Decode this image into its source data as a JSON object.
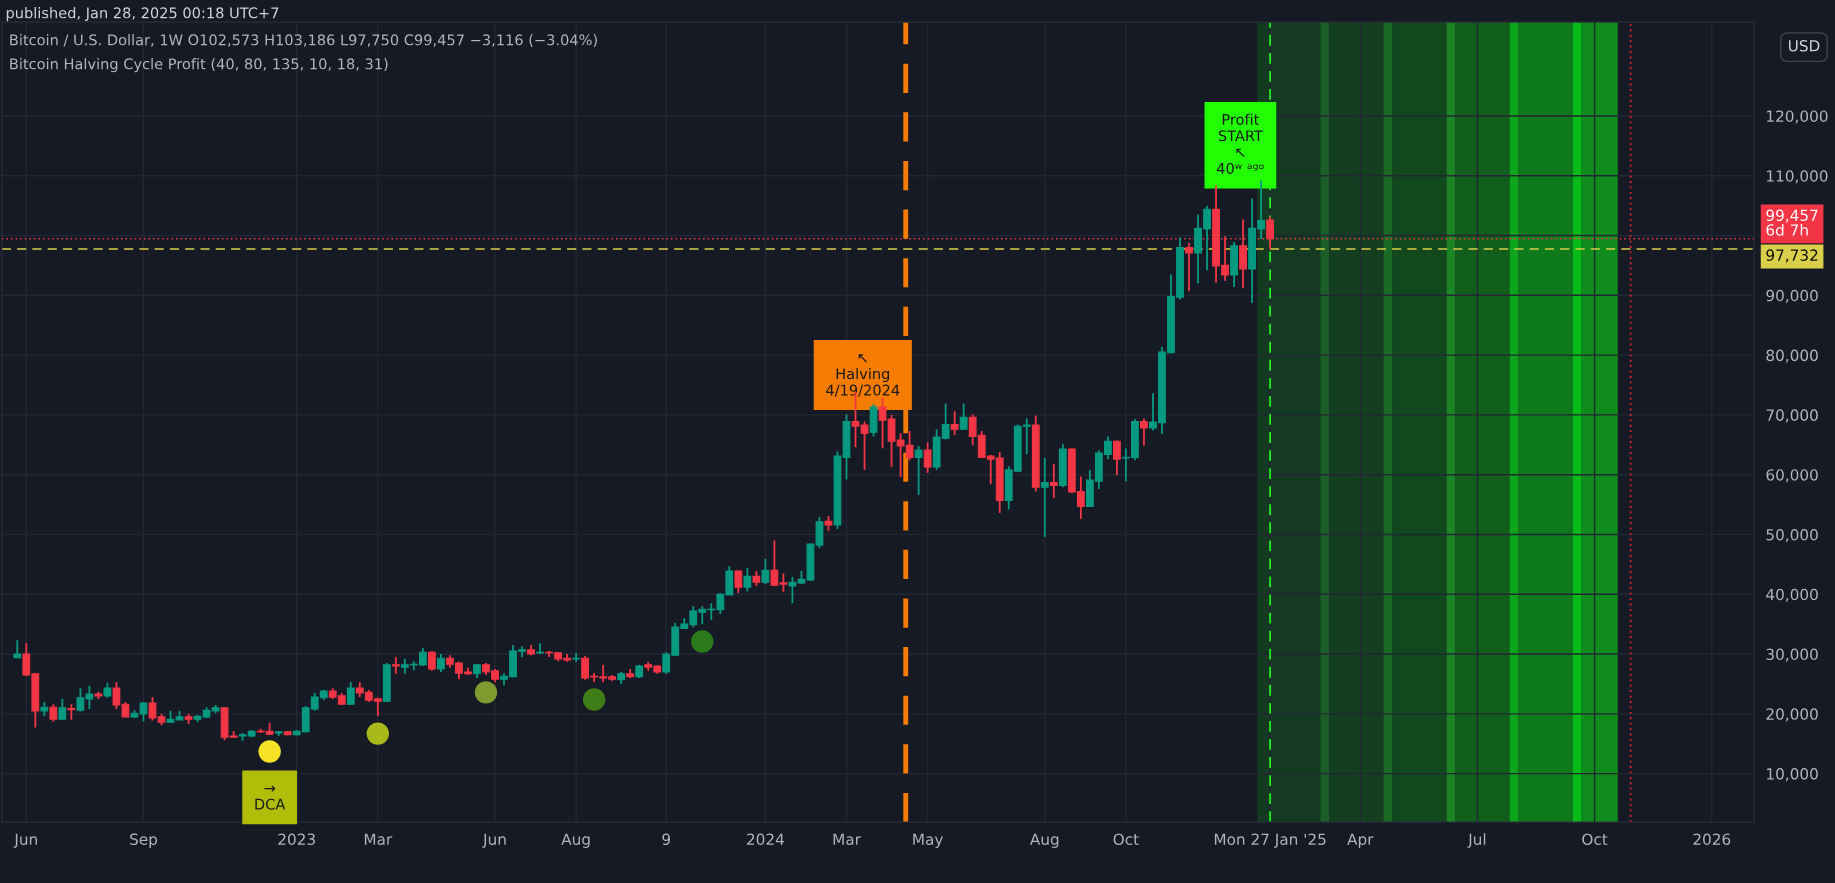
{
  "chart_data": {
    "type": "candlestick",
    "title": "Bitcoin / U.S. Dollar, 1W O102,573 H103,186 L97,750 C99,457 −3,116 (−3.04%)",
    "subtitle": "Bitcoin Halving Cycle Profit (40, 80, 135, 10, 18, 31)",
    "colors": [
      "#089981",
      "#f23645",
      "#f23645",
      "#089981",
      "#f23645",
      "#089981",
      "#f23645",
      "#089981",
      "#089981",
      "#f23645",
      "#089981",
      "#f23645",
      "#f23645",
      "#089981",
      "#089981",
      "#f23645",
      "#f23645",
      "#089981",
      "#089981",
      "#f23645",
      "#089981",
      "#089981",
      "#089981",
      "#f23645",
      "#f23645",
      "#089981",
      "#089981",
      "#f23645",
      "#f23645",
      "#089981",
      "#f23645",
      "#089981",
      "#089981",
      "#089981",
      "#089981",
      "#f23645",
      "#f23645",
      "#089981",
      "#f23645",
      "#f23645",
      "#f23645",
      "#089981",
      "#f23645",
      "#089981",
      "#089981",
      "#089981",
      "#f23645",
      "#089981",
      "#f23645",
      "#f23645",
      "#f23645",
      "#089981",
      "#f23645",
      "#f23645",
      "#089981",
      "#089981",
      "#089981",
      "#f23645",
      "#089981",
      "#f23645",
      "#f23645",
      "#f23645",
      "#089981",
      "#f23645",
      "#f23645",
      "#f23645",
      "#f23645",
      "#089981",
      "#f23645",
      "#089981",
      "#f23645",
      "#f23645",
      "#089981",
      "#089981",
      "#089981",
      "#089981",
      "#089981",
      "#089981",
      "#089981",
      "#089981",
      "#f23645",
      "#089981",
      "#f23645",
      "#089981",
      "#f23645",
      "#f23645",
      "#089981",
      "#089981",
      "#089981",
      "#089981",
      "#f23645",
      "#089981",
      "#089981",
      "#f23645",
      "#f23645",
      "#089981",
      "#f23645",
      "#f23645",
      "#f23645",
      "#f23645",
      "#089981",
      "#f23645",
      "#089981",
      "#089981",
      "#f23645",
      "#089981",
      "#f23645",
      "#f23645",
      "#f23645",
      "#f23645",
      "#089981",
      "#089981",
      "#089981",
      "#f23645",
      "#089981",
      "#f23645",
      "#089981",
      "#f23645",
      "#f23645",
      "#089981",
      "#089981",
      "#089981",
      "#f23645",
      "#089981",
      "#089981",
      "#f23645",
      "#089981",
      "#089981",
      "#089981",
      "#089981",
      "#f23645",
      "#089981",
      "#089981",
      "#f23645",
      "#f23645",
      "#089981",
      "#f23645",
      "#089981",
      "#089981",
      "#f23645"
    ],
    "x": [
      "2022-05-30",
      "2022-06-06",
      "2022-06-13",
      "2022-06-20",
      "2022-06-27",
      "2022-07-04",
      "2022-07-11",
      "2022-07-18",
      "2022-07-25",
      "2022-08-01",
      "2022-08-08",
      "2022-08-15",
      "2022-08-22",
      "2022-08-29",
      "2022-09-05",
      "2022-09-12",
      "2022-09-19",
      "2022-09-26",
      "2022-10-03",
      "2022-10-10",
      "2022-10-17",
      "2022-10-24",
      "2022-10-31",
      "2022-11-07",
      "2022-11-14",
      "2022-11-21",
      "2022-11-28",
      "2022-12-05",
      "2022-12-12",
      "2022-12-19",
      "2022-12-26",
      "2023-01-02",
      "2023-01-09",
      "2023-01-16",
      "2023-01-23",
      "2023-01-30",
      "2023-02-06",
      "2023-02-13",
      "2023-02-20",
      "2023-02-27",
      "2023-03-06",
      "2023-03-13",
      "2023-03-20",
      "2023-03-27",
      "2023-04-03",
      "2023-04-10",
      "2023-04-17",
      "2023-04-24",
      "2023-05-01",
      "2023-05-08",
      "2023-05-15",
      "2023-05-22",
      "2023-05-29",
      "2023-06-05",
      "2023-06-12",
      "2023-06-19",
      "2023-06-26",
      "2023-07-03",
      "2023-07-10",
      "2023-07-17",
      "2023-07-24",
      "2023-07-31",
      "2023-08-07",
      "2023-08-14",
      "2023-08-21",
      "2023-08-28",
      "2023-09-04",
      "2023-09-11",
      "2023-09-18",
      "2023-09-25",
      "2023-10-02",
      "2023-10-09",
      "2023-10-16",
      "2023-10-23",
      "2023-10-30",
      "2023-11-06",
      "2023-11-13",
      "2023-11-20",
      "2023-11-27",
      "2023-12-04",
      "2023-12-11",
      "2023-12-18",
      "2023-12-25",
      "2024-01-01",
      "2024-01-08",
      "2024-01-15",
      "2024-01-22",
      "2024-01-29",
      "2024-02-05",
      "2024-02-12",
      "2024-02-19",
      "2024-02-26",
      "2024-03-04",
      "2024-03-11",
      "2024-03-18",
      "2024-03-25",
      "2024-04-01",
      "2024-04-08",
      "2024-04-15",
      "2024-04-22",
      "2024-04-29",
      "2024-05-06",
      "2024-05-13",
      "2024-05-20",
      "2024-05-27",
      "2024-06-03",
      "2024-06-10",
      "2024-06-17",
      "2024-06-24",
      "2024-07-01",
      "2024-07-08",
      "2024-07-15",
      "2024-07-22",
      "2024-07-29",
      "2024-08-05",
      "2024-08-12",
      "2024-08-19",
      "2024-08-26",
      "2024-09-02",
      "2024-09-09",
      "2024-09-16",
      "2024-09-23",
      "2024-09-30",
      "2024-10-07",
      "2024-10-14",
      "2024-10-21",
      "2024-10-28",
      "2024-11-04",
      "2024-11-11",
      "2024-11-18",
      "2024-11-25",
      "2024-12-02",
      "2024-12-09",
      "2024-12-16",
      "2024-12-23",
      "2024-12-30",
      "2025-01-06",
      "2025-01-13",
      "2025-01-20",
      "2025-01-27"
    ],
    "ohlc": [
      [
        29400,
        32300,
        29300,
        30000
      ],
      [
        30000,
        31800,
        26300,
        26500
      ],
      [
        26700,
        26800,
        17700,
        20500
      ],
      [
        20500,
        22000,
        19600,
        21100
      ],
      [
        21100,
        21600,
        18700,
        19100
      ],
      [
        19100,
        22500,
        19000,
        21000
      ],
      [
        20900,
        21600,
        19000,
        20700
      ],
      [
        20600,
        24300,
        20400,
        22700
      ],
      [
        22500,
        24700,
        20800,
        23300
      ],
      [
        23300,
        23700,
        22500,
        23000
      ],
      [
        23000,
        25200,
        22700,
        24300
      ],
      [
        24300,
        25300,
        20800,
        21500
      ],
      [
        21600,
        22000,
        19400,
        19500
      ],
      [
        19500,
        20600,
        19300,
        20100
      ],
      [
        20000,
        22000,
        18700,
        21800
      ],
      [
        21800,
        22800,
        18900,
        19300
      ],
      [
        19500,
        20000,
        18100,
        18600
      ],
      [
        18600,
        20500,
        18500,
        19100
      ],
      [
        19000,
        20500,
        19000,
        19500
      ],
      [
        19500,
        20000,
        18300,
        19100
      ],
      [
        19100,
        19800,
        18600,
        19600
      ],
      [
        19500,
        21100,
        19300,
        20600
      ],
      [
        20500,
        21500,
        20100,
        21000
      ],
      [
        21000,
        21100,
        15600,
        16100
      ],
      [
        16300,
        17100,
        16000,
        16100
      ],
      [
        16300,
        16800,
        15500,
        16500
      ],
      [
        16300,
        17300,
        16100,
        17100
      ],
      [
        17100,
        17500,
        16800,
        17000
      ],
      [
        17100,
        18500,
        16500,
        16600
      ],
      [
        16800,
        17100,
        16300,
        17000
      ],
      [
        17000,
        17100,
        16400,
        16500
      ],
      [
        16500,
        17300,
        16400,
        17100
      ],
      [
        17000,
        21300,
        16900,
        21000
      ],
      [
        20800,
        23500,
        20500,
        22800
      ],
      [
        22700,
        24000,
        22300,
        23800
      ],
      [
        23800,
        24300,
        22500,
        22800
      ],
      [
        23000,
        23500,
        21500,
        21600
      ],
      [
        21600,
        25300,
        21500,
        24300
      ],
      [
        24300,
        25300,
        22800,
        23500
      ],
      [
        23600,
        24000,
        22000,
        22300
      ],
      [
        22500,
        22700,
        19600,
        22100
      ],
      [
        22100,
        28500,
        22000,
        28200
      ],
      [
        28200,
        29500,
        26700,
        28000
      ],
      [
        27800,
        29200,
        26700,
        28200
      ],
      [
        28200,
        28800,
        27300,
        28300
      ],
      [
        28200,
        31000,
        28000,
        30300
      ],
      [
        30300,
        30500,
        27200,
        27500
      ],
      [
        27500,
        30000,
        27000,
        29300
      ],
      [
        29300,
        29800,
        27700,
        28300
      ],
      [
        28500,
        28700,
        25800,
        26800
      ],
      [
        27000,
        27700,
        26500,
        26700
      ],
      [
        26700,
        28300,
        26000,
        28200
      ],
      [
        28200,
        28500,
        26500,
        27000
      ],
      [
        27200,
        27500,
        25300,
        25800
      ],
      [
        25800,
        26800,
        24800,
        26300
      ],
      [
        26200,
        31500,
        26100,
        30500
      ],
      [
        30500,
        31300,
        29500,
        30700
      ],
      [
        30700,
        31500,
        29800,
        30000
      ],
      [
        30200,
        31800,
        30000,
        30300
      ],
      [
        30300,
        30500,
        29500,
        30200
      ],
      [
        30200,
        30300,
        28800,
        29200
      ],
      [
        29300,
        30000,
        28700,
        29000
      ],
      [
        29200,
        30200,
        28700,
        29300
      ],
      [
        29300,
        29700,
        25700,
        26000
      ],
      [
        26300,
        26800,
        25300,
        26200
      ],
      [
        26200,
        28200,
        25300,
        26000
      ],
      [
        26200,
        26500,
        25500,
        25800
      ],
      [
        25700,
        27000,
        25000,
        26700
      ],
      [
        26700,
        27500,
        26000,
        26200
      ],
      [
        26200,
        28200,
        26000,
        28000
      ],
      [
        28200,
        28700,
        27200,
        27800
      ],
      [
        28000,
        28100,
        26700,
        27000
      ],
      [
        27000,
        30300,
        26700,
        30000
      ],
      [
        29800,
        35200,
        29700,
        34500
      ],
      [
        34300,
        36000,
        34200,
        35000
      ],
      [
        34900,
        38000,
        34500,
        37200
      ],
      [
        37000,
        38000,
        35000,
        37500
      ],
      [
        37400,
        38500,
        35700,
        37500
      ],
      [
        37400,
        40200,
        36700,
        40000
      ],
      [
        39900,
        44700,
        39900,
        43900
      ],
      [
        43900,
        44000,
        40200,
        41200
      ],
      [
        41200,
        44400,
        40500,
        43000
      ],
      [
        43000,
        43900,
        41400,
        42000
      ],
      [
        42000,
        45900,
        41700,
        44000
      ],
      [
        44000,
        49000,
        41400,
        41500
      ],
      [
        41900,
        43500,
        40400,
        41700
      ],
      [
        41400,
        42900,
        38500,
        42000
      ],
      [
        41900,
        43900,
        41700,
        42500
      ],
      [
        42400,
        48500,
        42200,
        48400
      ],
      [
        48200,
        52900,
        47700,
        52100
      ],
      [
        52200,
        53100,
        50600,
        51600
      ],
      [
        51600,
        63900,
        50900,
        63100
      ],
      [
        62900,
        70100,
        59200,
        68900
      ],
      [
        68900,
        73800,
        64600,
        68100
      ],
      [
        68300,
        68900,
        60800,
        66900
      ],
      [
        67100,
        71800,
        66400,
        71300
      ],
      [
        71300,
        72800,
        64400,
        69100
      ],
      [
        69300,
        70000,
        61300,
        65600
      ],
      [
        65800,
        66900,
        59600,
        64800
      ],
      [
        64900,
        67300,
        62400,
        62900
      ],
      [
        62900,
        64800,
        56600,
        64100
      ],
      [
        64100,
        65400,
        60300,
        61300
      ],
      [
        61300,
        67600,
        60800,
        66300
      ],
      [
        66100,
        71900,
        65900,
        68400
      ],
      [
        68400,
        70600,
        66600,
        67600
      ],
      [
        67600,
        71900,
        67500,
        69600
      ],
      [
        69600,
        70100,
        64900,
        66400
      ],
      [
        66600,
        67300,
        62800,
        62900
      ],
      [
        63100,
        63300,
        58400,
        62600
      ],
      [
        62800,
        63800,
        53600,
        55700
      ],
      [
        55700,
        61400,
        54200,
        60800
      ],
      [
        60600,
        68400,
        60500,
        68100
      ],
      [
        68100,
        69400,
        63400,
        68300
      ],
      [
        68300,
        69900,
        57200,
        57900
      ],
      [
        57900,
        62800,
        49600,
        58700
      ],
      [
        58700,
        61800,
        56100,
        58200
      ],
      [
        58200,
        65100,
        57900,
        64300
      ],
      [
        64300,
        64400,
        56900,
        57100
      ],
      [
        57200,
        59700,
        52600,
        54700
      ],
      [
        54700,
        60800,
        54600,
        59100
      ],
      [
        58900,
        64100,
        57600,
        63600
      ],
      [
        63400,
        66400,
        62600,
        65600
      ],
      [
        65600,
        65700,
        59900,
        62600
      ],
      [
        62800,
        64400,
        58900,
        62900
      ],
      [
        62900,
        69300,
        62400,
        68900
      ],
      [
        68900,
        69400,
        64900,
        67800
      ],
      [
        67800,
        73600,
        67400,
        68800
      ],
      [
        68700,
        81400,
        66800,
        80500
      ],
      [
        80400,
        93500,
        80300,
        89800
      ],
      [
        89700,
        99700,
        89300,
        98000
      ],
      [
        98000,
        98800,
        90700,
        97100
      ],
      [
        97100,
        103500,
        92000,
        101200
      ],
      [
        101100,
        105000,
        94200,
        104400
      ],
      [
        104400,
        108400,
        92100,
        94900
      ],
      [
        95000,
        99900,
        92400,
        93400
      ],
      [
        93400,
        98900,
        91400,
        98300
      ],
      [
        98300,
        102700,
        91200,
        94400
      ],
      [
        94400,
        106200,
        88700,
        101200
      ],
      [
        101100,
        109200,
        99400,
        102500
      ],
      [
        102573,
        103186,
        97750,
        99457
      ]
    ],
    "series": [
      {
        "type": "scatter",
        "marker": "circle",
        "x": [
          "2022-12-12",
          "2023-03-06",
          "2023-05-29",
          "2023-08-21",
          "2023-11-13"
        ],
        "values": [
          13700,
          16700,
          23600,
          22400,
          32100
        ],
        "colors": [
          "#f7e225",
          "#aab91a",
          "#7f9a2f",
          "#3e7d17",
          "#2a7a1c"
        ]
      }
    ],
    "xlim": [
      "2022-05-18",
      "2026-02-07"
    ],
    "xticks": [
      {
        "value": "2022-06-06",
        "label": "Jun"
      },
      {
        "value": "2022-09-05",
        "label": "Sep"
      },
      {
        "value": "2023-01-02",
        "label": "2023"
      },
      {
        "value": "2023-03-06",
        "label": "Mar"
      },
      {
        "value": "2023-06-05",
        "label": "Jun"
      },
      {
        "value": "2023-08-07",
        "label": "Aug"
      },
      {
        "value": "2023-10-16",
        "label": "9"
      },
      {
        "value": "2024-01-01",
        "label": "2024"
      },
      {
        "value": "2024-03-04",
        "label": "Mar"
      },
      {
        "value": "2024-05-06",
        "label": "May"
      },
      {
        "value": "2024-08-05",
        "label": "Aug"
      },
      {
        "value": "2024-10-07",
        "label": "Oct"
      },
      {
        "value": "2025-01-27",
        "label": "Mon 27 Jan '25"
      },
      {
        "value": "2025-04-07",
        "label": "Apr"
      },
      {
        "value": "2025-07-07",
        "label": "Jul"
      },
      {
        "value": "2025-10-06",
        "label": "Oct"
      },
      {
        "value": "2026-01-05",
        "label": "2026"
      }
    ],
    "ylim": [
      1900,
      135700
    ],
    "yticks": [
      {
        "value": 10000,
        "label": "10,000"
      },
      {
        "value": 20000,
        "label": "20,000"
      },
      {
        "value": 30000,
        "label": "30,000"
      },
      {
        "value": 40000,
        "label": "40,000"
      },
      {
        "value": 50000,
        "label": "50,000"
      },
      {
        "value": 60000,
        "label": "60,000"
      },
      {
        "value": 70000,
        "label": "70,000"
      },
      {
        "value": 80000,
        "label": "80,000"
      },
      {
        "value": 90000,
        "label": "90,000"
      },
      {
        "value": 100000,
        "label": null
      },
      {
        "value": 110000,
        "label": "110,000"
      },
      {
        "value": 120000,
        "label": "120,000"
      }
    ],
    "grid": true,
    "bands": [
      {
        "axis": "x",
        "from": "2025-01-17",
        "to": "2025-03-07",
        "color": "#143a22"
      },
      {
        "axis": "x",
        "from": "2025-03-07",
        "to": "2025-03-14",
        "color": "#1b5e27"
      },
      {
        "axis": "x",
        "from": "2025-03-14",
        "to": "2025-04-25",
        "color": "#133f20"
      },
      {
        "axis": "x",
        "from": "2025-04-25",
        "to": "2025-05-02",
        "color": "#1a6a26"
      },
      {
        "axis": "x",
        "from": "2025-05-02",
        "to": "2025-06-13",
        "color": "#12481e"
      },
      {
        "axis": "x",
        "from": "2025-06-13",
        "to": "2025-06-20",
        "color": "#1b8425"
      },
      {
        "axis": "x",
        "from": "2025-06-20",
        "to": "2025-08-01",
        "color": "#125e1c"
      },
      {
        "axis": "x",
        "from": "2025-08-01",
        "to": "2025-08-08",
        "color": "#0ca51c"
      },
      {
        "axis": "x",
        "from": "2025-08-08",
        "to": "2025-09-19",
        "color": "#0e7a1c"
      },
      {
        "axis": "x",
        "from": "2025-09-19",
        "to": "2025-09-26",
        "color": "#08bb18"
      },
      {
        "axis": "x",
        "from": "2025-09-26",
        "to": "2025-10-24",
        "color": "#0f8c1c"
      }
    ],
    "ref_lines": [
      {
        "axis": "y",
        "value": 99457,
        "label": "99,457\n6d 7h",
        "color": "#f23645",
        "line_style": "dotted"
      },
      {
        "axis": "y",
        "value": 97732,
        "label": "97,732",
        "color": "#d9cf4a",
        "line_style": "dashed"
      },
      {
        "axis": "x",
        "value": "2024-04-19",
        "color": "#f57c00",
        "line_style": "dashed"
      },
      {
        "axis": "x",
        "value": "2025-01-27",
        "color": "#22ee22",
        "line_style": "dashed"
      },
      {
        "axis": "x",
        "value": "2025-11-03",
        "color": "#e0202a",
        "line_style": "dotted"
      }
    ],
    "annotations": [
      "published, Jan 28, 2025 00:18 UTC+7",
      "USD",
      {
        "text": "→\nDCA",
        "x": "2022-12-12",
        "y": 13700
      },
      {
        "text": "↖\nHalving\n4/19/2024",
        "x": "2024-04-19",
        "y": 69500
      },
      {
        "text": "Profit\nSTART\n↖\n40ʷ ᵃᵍᵒ",
        "x": "2025-01-27",
        "y": 108900
      }
    ],
    "legend": false
  }
}
